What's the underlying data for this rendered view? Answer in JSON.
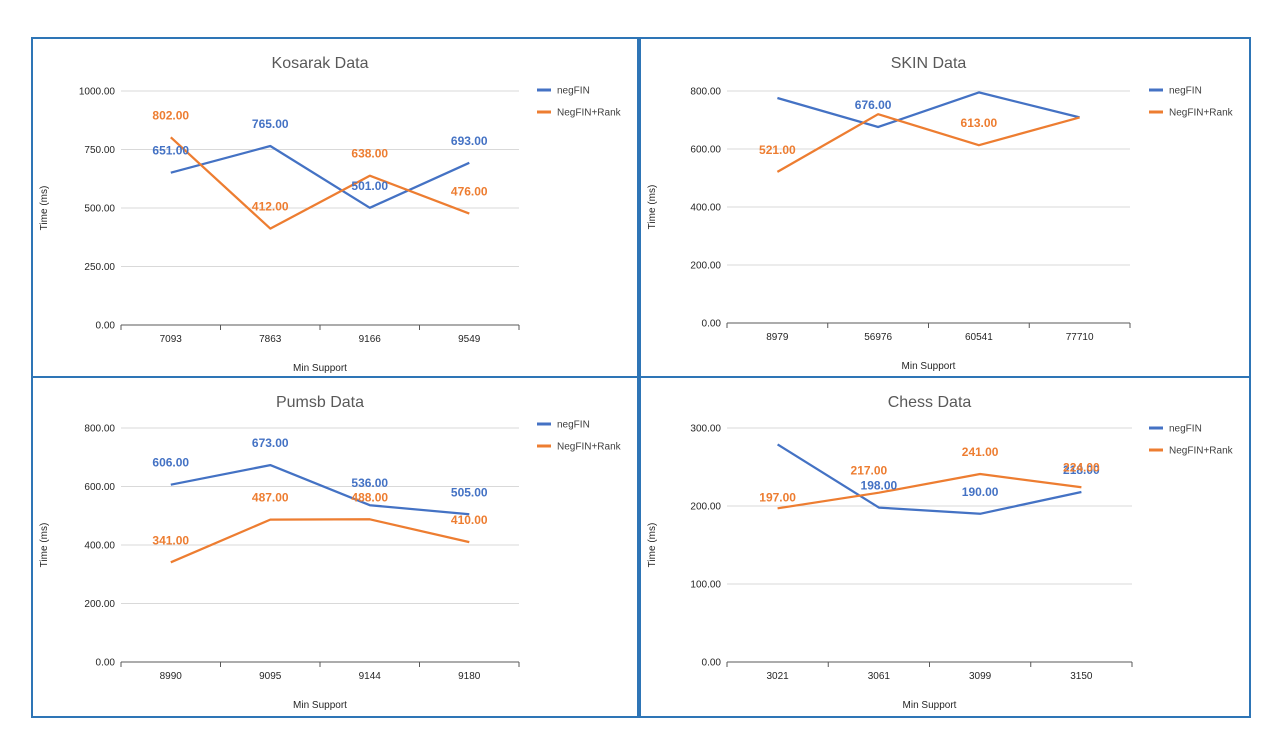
{
  "chart_data": [
    {
      "type": "line",
      "title": "Kosarak Data",
      "xlabel": "Min Support",
      "ylabel": "Time (ms)",
      "categories": [
        "7093",
        "7863",
        "9166",
        "9549"
      ],
      "ylim": [
        0,
        1000
      ],
      "yticks": [
        "0.00",
        "250.00",
        "500.00",
        "750.00",
        "1000.00"
      ],
      "grid": true,
      "legend": "right",
      "series": [
        {
          "name": "negFIN",
          "color": "#4472c4",
          "values": [
            651,
            765,
            501,
            693
          ],
          "labels": [
            "651.00",
            "765.00",
            "501.00",
            "693.00"
          ]
        },
        {
          "name": "NegFIN+Rank",
          "color": "#ed7d31",
          "values": [
            802,
            412,
            638,
            476
          ],
          "labels": [
            "802.00",
            "412.00",
            "638.00",
            "476.00"
          ]
        }
      ]
    },
    {
      "type": "line",
      "title": "SKIN Data",
      "xlabel": "Min Support",
      "ylabel": "Time (ms)",
      "categories": [
        "8979",
        "56976",
        "60541",
        "77710"
      ],
      "ylim": [
        0,
        800
      ],
      "yticks": [
        "0.00",
        "200.00",
        "400.00",
        "600.00",
        "800.00"
      ],
      "grid": true,
      "legend": "right",
      "series": [
        {
          "name": "negFIN",
          "color": "#4472c4",
          "values": [
            776,
            676,
            795,
            709
          ],
          "labels": [
            "",
            "676.00",
            "",
            ""
          ]
        },
        {
          "name": "NegFIN+Rank",
          "color": "#ed7d31",
          "values": [
            521,
            720,
            613,
            709
          ],
          "labels": [
            "521.00",
            "",
            "613.00",
            ""
          ]
        }
      ]
    },
    {
      "type": "line",
      "title": "Pumsb Data",
      "xlabel": "Min Support",
      "ylabel": "Time (ms)",
      "categories": [
        "8990",
        "9095",
        "9144",
        "9180"
      ],
      "ylim": [
        0,
        800
      ],
      "yticks": [
        "0.00",
        "200.00",
        "400.00",
        "600.00",
        "800.00"
      ],
      "grid": true,
      "legend": "right",
      "series": [
        {
          "name": "negFIN",
          "color": "#4472c4",
          "values": [
            606,
            673,
            536,
            505
          ],
          "labels": [
            "606.00",
            "673.00",
            "536.00",
            "505.00"
          ]
        },
        {
          "name": "NegFIN+Rank",
          "color": "#ed7d31",
          "values": [
            341,
            487,
            488,
            410
          ],
          "labels": [
            "341.00",
            "487.00",
            "488.00",
            "410.00"
          ]
        }
      ]
    },
    {
      "type": "line",
      "title": "Chess Data",
      "xlabel": "Min Support",
      "ylabel": "Time (ms)",
      "categories": [
        "3021",
        "3061",
        "3099",
        "3150"
      ],
      "ylim": [
        0,
        300
      ],
      "yticks": [
        "0.00",
        "100.00",
        "200.00",
        "300.00"
      ],
      "grid": true,
      "legend": "right",
      "series": [
        {
          "name": "negFIN",
          "color": "#4472c4",
          "values": [
            279,
            198,
            190,
            218
          ],
          "labels": [
            "",
            "198.00",
            "190.00",
            "218.00"
          ]
        },
        {
          "name": "NegFIN+Rank",
          "color": "#ed7d31",
          "values": [
            197,
            217,
            241,
            224
          ],
          "labels": [
            "197.00",
            "217.00",
            "241.00",
            "224.00"
          ]
        }
      ]
    }
  ]
}
